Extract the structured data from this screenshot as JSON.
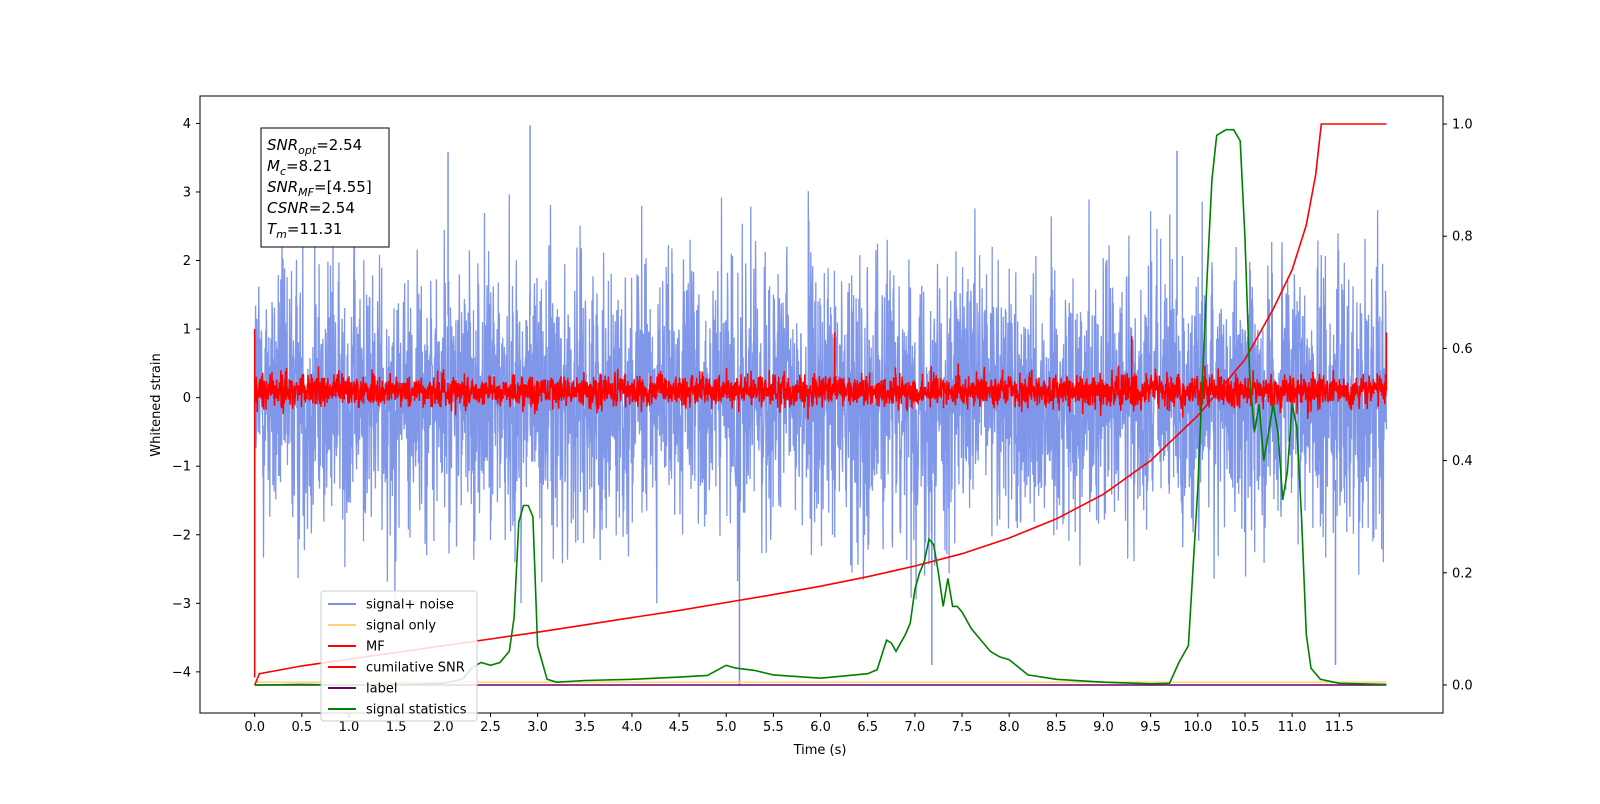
{
  "chart_data": {
    "type": "line",
    "xlabel": "Time (s)",
    "ylabel": "Whitened strain",
    "xlim": [
      -0.58,
      12.6
    ],
    "ylim": [
      -4.6,
      4.4
    ],
    "y2lim": [
      -0.05,
      1.05
    ],
    "x_ticks": [
      0.0,
      0.5,
      1.0,
      1.5,
      2.0,
      2.5,
      3.0,
      3.5,
      4.0,
      4.5,
      5.0,
      5.5,
      6.0,
      6.5,
      7.0,
      7.5,
      8.0,
      8.5,
      9.0,
      9.5,
      10.0,
      10.5,
      11.0,
      11.5
    ],
    "x_tick_labels": [
      "0.0",
      "0.5",
      "1.0",
      "1.5",
      "2.0",
      "2.5",
      "3.0",
      "3.5",
      "4.0",
      "4.5",
      "5.0",
      "5.5",
      "6.0",
      "6.5",
      "7.0",
      "7.5",
      "8.0",
      "8.5",
      "9.0",
      "9.5",
      "10.0",
      "10.5",
      "11.0",
      "11.5"
    ],
    "y_ticks": [
      -4,
      -3,
      -2,
      -1,
      0,
      1,
      2,
      3,
      4
    ],
    "y_tick_labels": [
      "−4",
      "−3",
      "−2",
      "−1",
      "0",
      "1",
      "2",
      "3",
      "4"
    ],
    "y2_ticks": [
      0.0,
      0.2,
      0.4,
      0.6,
      0.8,
      1.0
    ],
    "y2_tick_labels": [
      "0.0",
      "0.2",
      "0.4",
      "0.6",
      "0.8",
      "1.0"
    ],
    "grid": false,
    "legend_position": "bottom-left",
    "noise": {
      "x_range": [
        0.0,
        12.0
      ],
      "signal_noise_approx_range": [
        -2.6,
        2.6
      ],
      "mf_approx_range": [
        -0.35,
        0.6
      ]
    },
    "series": [
      {
        "name": "signal+ noise",
        "color": "#7890e8",
        "axis": "left",
        "notable_points": [
          [
            2.92,
            3.97
          ],
          [
            5.14,
            -4.2
          ],
          [
            7.18,
            -3.9
          ],
          [
            11.46,
            -3.9
          ],
          [
            2.05,
            3.58
          ],
          [
            9.78,
            3.6
          ]
        ]
      },
      {
        "name": "signal only",
        "color": "#ffd27a",
        "axis": "left",
        "x": [
          0.0,
          12.0
        ],
        "y": [
          -4.15,
          -4.15
        ]
      },
      {
        "name": "MF",
        "color": "#ff0000",
        "axis": "left",
        "notable_points": [
          [
            0.0,
            1.0
          ],
          [
            0.0,
            -4.08
          ],
          [
            12.0,
            0.95
          ],
          [
            6.15,
            0.95
          ],
          [
            9.3,
            0.9
          ]
        ]
      },
      {
        "name": "cumilative SNR",
        "color": "#ff0000",
        "axis": "right",
        "x": [
          0.0,
          0.05,
          0.5,
          1.0,
          1.5,
          2.0,
          2.5,
          3.0,
          3.5,
          4.0,
          4.5,
          5.0,
          5.5,
          6.0,
          6.5,
          7.0,
          7.5,
          8.0,
          8.5,
          9.0,
          9.5,
          10.0,
          10.5,
          10.8,
          11.0,
          11.15,
          11.25,
          11.31,
          12.0
        ],
        "y": [
          0.0,
          0.02,
          0.034,
          0.046,
          0.058,
          0.07,
          0.082,
          0.094,
          0.107,
          0.12,
          0.133,
          0.147,
          0.161,
          0.176,
          0.193,
          0.212,
          0.234,
          0.262,
          0.296,
          0.34,
          0.4,
          0.48,
          0.58,
          0.67,
          0.74,
          0.82,
          0.91,
          1.0,
          1.0
        ]
      },
      {
        "name": "label",
        "color": "#6a006a",
        "axis": "right",
        "x": [
          0.0,
          12.0
        ],
        "y": [
          0.0,
          0.0
        ]
      },
      {
        "name": "signal statistics",
        "color": "#008000",
        "axis": "right",
        "x": [
          0.0,
          0.5,
          1.0,
          1.5,
          2.0,
          2.2,
          2.3,
          2.4,
          2.5,
          2.6,
          2.7,
          2.75,
          2.8,
          2.85,
          2.9,
          2.95,
          3.0,
          3.05,
          3.1,
          3.2,
          3.5,
          4.0,
          4.5,
          4.8,
          5.0,
          5.1,
          5.3,
          5.5,
          6.0,
          6.5,
          6.6,
          6.7,
          6.75,
          6.8,
          6.85,
          6.9,
          6.95,
          7.0,
          7.05,
          7.1,
          7.15,
          7.2,
          7.25,
          7.3,
          7.35,
          7.4,
          7.45,
          7.5,
          7.6,
          7.7,
          7.8,
          7.9,
          8.0,
          8.2,
          8.5,
          9.0,
          9.5,
          9.7,
          9.8,
          9.9,
          10.0,
          10.05,
          10.1,
          10.15,
          10.2,
          10.3,
          10.38,
          10.45,
          10.5,
          10.55,
          10.6,
          10.65,
          10.7,
          10.75,
          10.8,
          10.85,
          10.9,
          10.95,
          11.0,
          11.05,
          11.1,
          11.15,
          11.2,
          11.3,
          11.5,
          12.0
        ],
        "y": [
          0.0,
          0.001,
          0.0,
          0.001,
          0.003,
          0.01,
          0.03,
          0.04,
          0.035,
          0.04,
          0.06,
          0.12,
          0.29,
          0.32,
          0.32,
          0.3,
          0.07,
          0.04,
          0.01,
          0.005,
          0.008,
          0.01,
          0.014,
          0.017,
          0.035,
          0.03,
          0.026,
          0.018,
          0.012,
          0.02,
          0.027,
          0.08,
          0.075,
          0.06,
          0.075,
          0.09,
          0.11,
          0.17,
          0.2,
          0.22,
          0.26,
          0.25,
          0.2,
          0.14,
          0.19,
          0.14,
          0.14,
          0.13,
          0.1,
          0.08,
          0.06,
          0.05,
          0.045,
          0.018,
          0.01,
          0.005,
          0.002,
          0.003,
          0.04,
          0.07,
          0.35,
          0.55,
          0.73,
          0.9,
          0.98,
          0.99,
          0.99,
          0.97,
          0.8,
          0.55,
          0.45,
          0.5,
          0.4,
          0.45,
          0.5,
          0.45,
          0.33,
          0.38,
          0.5,
          0.46,
          0.3,
          0.09,
          0.03,
          0.01,
          0.003,
          0.001
        ]
      }
    ],
    "annotation": {
      "lines": [
        {
          "sym": "SNR",
          "sub": "opt",
          "value": "=2.54"
        },
        {
          "sym": "M",
          "sub": "c",
          "value": "=8.21"
        },
        {
          "sym": "SNR",
          "sub": "MF",
          "value": "=[4.55]"
        },
        {
          "sym": "CSNR",
          "sub": "",
          "value": "=2.54"
        },
        {
          "sym": "T",
          "sub": "m",
          "value": "=11.31"
        }
      ]
    }
  }
}
